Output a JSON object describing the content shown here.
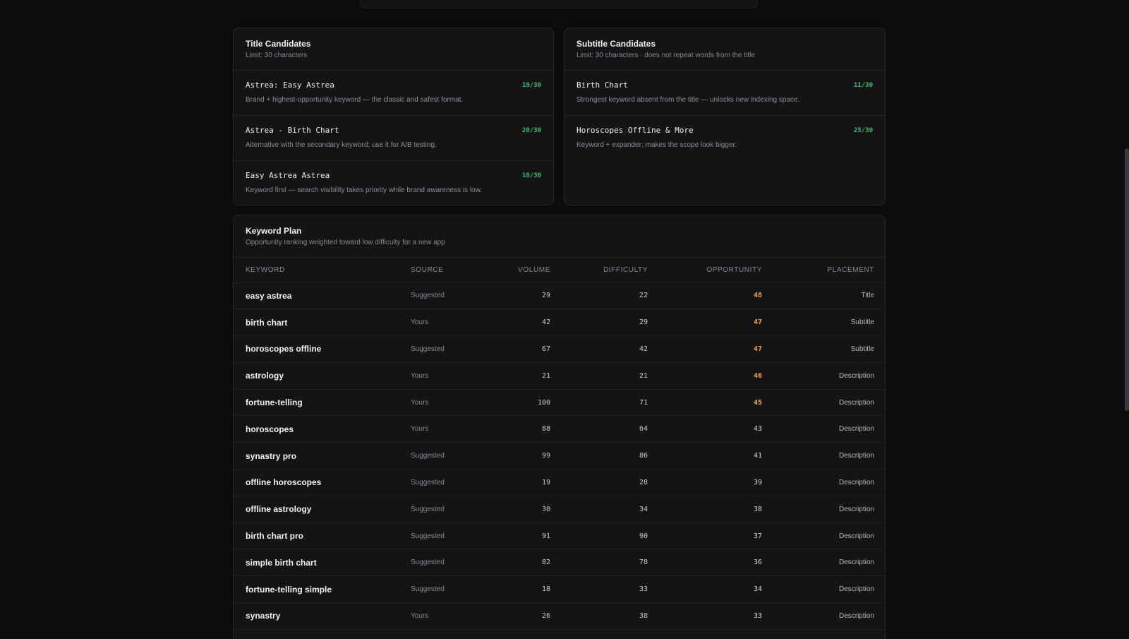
{
  "title_candidates": {
    "title": "Title Candidates",
    "subtitle": "Limit: 30 characters",
    "items": [
      {
        "name": "Astrea: Easy Astrea",
        "count": "19/30",
        "desc": "Brand + highest-opportunity keyword — the classic and safest format."
      },
      {
        "name": "Astrea - Birth Chart",
        "count": "20/30",
        "desc": "Alternative with the secondary keyword; use it for A/B testing."
      },
      {
        "name": "Easy Astrea Astrea",
        "count": "18/30",
        "desc": "Keyword first — search visibility takes priority while brand awareness is low."
      }
    ]
  },
  "subtitle_candidates": {
    "title": "Subtitle Candidates",
    "subtitle": "Limit: 30 characters · does not repeat words from the title",
    "items": [
      {
        "name": "Birth Chart",
        "count": "11/30",
        "desc": "Strongest keyword absent from the title — unlocks new indexing space."
      },
      {
        "name": "Horoscopes Offline & More",
        "count": "25/30",
        "desc": "Keyword + expander; makes the scope look bigger."
      }
    ]
  },
  "keyword_plan": {
    "title": "Keyword Plan",
    "subtitle": "Opportunity ranking weighted toward low difficulty for a new app",
    "columns": [
      "KEYWORD",
      "SOURCE",
      "VOLUME",
      "DIFFICULTY",
      "OPPORTUNITY",
      "PLACEMENT"
    ],
    "rows": [
      {
        "keyword": "easy astrea",
        "source": "Suggested",
        "volume": "29",
        "difficulty": "22",
        "opportunity": "48",
        "placement": "Title",
        "highlight": true
      },
      {
        "keyword": "birth chart",
        "source": "Yours",
        "volume": "42",
        "difficulty": "29",
        "opportunity": "47",
        "placement": "Subtitle",
        "highlight": true
      },
      {
        "keyword": "horoscopes offline",
        "source": "Suggested",
        "volume": "67",
        "difficulty": "42",
        "opportunity": "47",
        "placement": "Subtitle",
        "highlight": true
      },
      {
        "keyword": "astrology",
        "source": "Yours",
        "volume": "21",
        "difficulty": "21",
        "opportunity": "46",
        "placement": "Description",
        "highlight": true
      },
      {
        "keyword": "fortune-telling",
        "source": "Yours",
        "volume": "100",
        "difficulty": "71",
        "opportunity": "45",
        "placement": "Description",
        "highlight": true
      },
      {
        "keyword": "horoscopes",
        "source": "Yours",
        "volume": "88",
        "difficulty": "64",
        "opportunity": "43",
        "placement": "Description",
        "highlight": false
      },
      {
        "keyword": "synastry pro",
        "source": "Suggested",
        "volume": "99",
        "difficulty": "86",
        "opportunity": "41",
        "placement": "Description",
        "highlight": false
      },
      {
        "keyword": "offline horoscopes",
        "source": "Suggested",
        "volume": "19",
        "difficulty": "28",
        "opportunity": "39",
        "placement": "Description",
        "highlight": false
      },
      {
        "keyword": "offline astrology",
        "source": "Suggested",
        "volume": "30",
        "difficulty": "34",
        "opportunity": "38",
        "placement": "Description",
        "highlight": false
      },
      {
        "keyword": "birth chart pro",
        "source": "Suggested",
        "volume": "91",
        "difficulty": "90",
        "opportunity": "37",
        "placement": "Description",
        "highlight": false
      },
      {
        "keyword": "simple birth chart",
        "source": "Suggested",
        "volume": "82",
        "difficulty": "78",
        "opportunity": "36",
        "placement": "Description",
        "highlight": false
      },
      {
        "keyword": "fortune-telling simple",
        "source": "Suggested",
        "volume": "18",
        "difficulty": "33",
        "opportunity": "34",
        "placement": "Description",
        "highlight": false
      },
      {
        "keyword": "synastry",
        "source": "Yours",
        "volume": "26",
        "difficulty": "38",
        "opportunity": "33",
        "placement": "Description",
        "highlight": false
      }
    ]
  },
  "colors": {
    "count_green": "#34c26a",
    "opportunity_highlight": "#f0a43a"
  }
}
